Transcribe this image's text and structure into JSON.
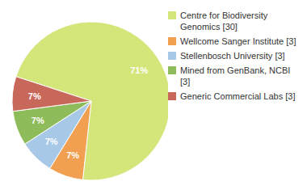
{
  "chart_data": {
    "type": "pie",
    "labels": [
      "Centre for Biodiversity\nGenomics [30]",
      "Wellcome Sanger Institute [3]",
      "Stellenbosch University [3]",
      "Mined from GenBank, NCBI [3]",
      "Generic Commercial Labs [3]"
    ],
    "values": [
      71,
      7,
      7,
      7,
      7
    ],
    "value_labels": [
      "71%",
      "7%",
      "7%",
      "7%",
      "7%"
    ],
    "colors": [
      "#d4e57a",
      "#f0a050",
      "#a8c8e8",
      "#8fbc5a",
      "#c8685a"
    ],
    "data_labels": true,
    "legend": "upper right"
  }
}
